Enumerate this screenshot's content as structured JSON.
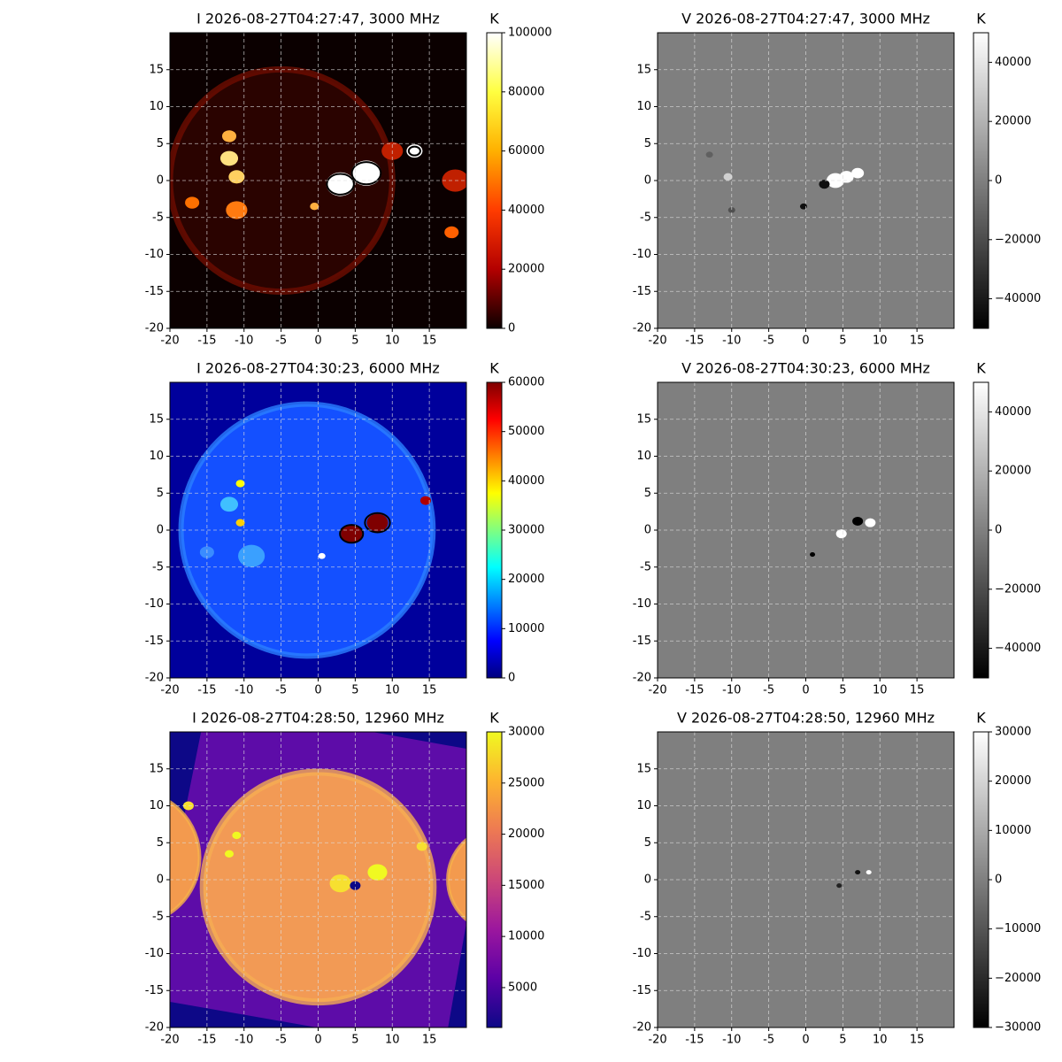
{
  "chart_data": [
    {
      "type": "heatmap",
      "title": "I 2026-08-27T04:27:47, 3000 MHz",
      "colorbar_label": "K",
      "colormap": "hot",
      "xlim": [
        -20,
        20
      ],
      "ylim": [
        -20,
        20
      ],
      "xticks": [
        -20,
        -15,
        -10,
        -5,
        0,
        5,
        10,
        15
      ],
      "yticks": [
        -20,
        -15,
        -10,
        -5,
        0,
        5,
        10,
        15
      ],
      "clim": [
        0,
        100000
      ],
      "cticks": [
        0,
        20000,
        40000,
        60000,
        80000,
        100000
      ],
      "grid": true
    },
    {
      "type": "heatmap",
      "title": "V 2026-08-27T04:27:47, 3000 MHz",
      "colorbar_label": "K",
      "colormap": "gray",
      "xlim": [
        -20,
        20
      ],
      "ylim": [
        -20,
        20
      ],
      "xticks": [
        -20,
        -15,
        -10,
        -5,
        0,
        5,
        10,
        15
      ],
      "yticks": [
        -20,
        -15,
        -10,
        -5,
        0,
        5,
        10,
        15
      ],
      "clim": [
        -50000,
        50000
      ],
      "cticks": [
        {
          "value": -40000,
          "label": "−40000"
        },
        {
          "value": -20000,
          "label": "−20000"
        },
        0,
        20000,
        40000
      ],
      "grid": true
    },
    {
      "type": "heatmap",
      "title": "I 2026-08-27T04:30:23, 6000 MHz",
      "colorbar_label": "K",
      "colormap": "jet",
      "xlim": [
        -20,
        20
      ],
      "ylim": [
        -20,
        20
      ],
      "xticks": [
        -20,
        -15,
        -10,
        -5,
        0,
        5,
        10,
        15
      ],
      "yticks": [
        -20,
        -15,
        -10,
        -5,
        0,
        5,
        10,
        15
      ],
      "clim": [
        0,
        60000
      ],
      "cticks": [
        0,
        10000,
        20000,
        30000,
        40000,
        50000,
        60000
      ],
      "grid": true
    },
    {
      "type": "heatmap",
      "title": "V 2026-08-27T04:30:23, 6000 MHz",
      "colorbar_label": "K",
      "colormap": "gray",
      "xlim": [
        -20,
        20
      ],
      "ylim": [
        -20,
        20
      ],
      "xticks": [
        -20,
        -15,
        -10,
        -5,
        0,
        5,
        10,
        15
      ],
      "yticks": [
        -20,
        -15,
        -10,
        -5,
        0,
        5,
        10,
        15
      ],
      "clim": [
        -50000,
        50000
      ],
      "cticks": [
        {
          "value": -40000,
          "label": "−40000"
        },
        {
          "value": -20000,
          "label": "−20000"
        },
        0,
        20000,
        40000
      ],
      "grid": true
    },
    {
      "type": "heatmap",
      "title": "I 2026-08-27T04:28:50, 12960 MHz",
      "colorbar_label": "K",
      "colormap": "plasma",
      "xlim": [
        -20,
        20
      ],
      "ylim": [
        -20,
        20
      ],
      "xticks": [
        -20,
        -15,
        -10,
        -5,
        0,
        5,
        10,
        15
      ],
      "yticks": [
        -20,
        -15,
        -10,
        -5,
        0,
        5,
        10,
        15
      ],
      "clim": [
        1100,
        30000
      ],
      "cticks": [
        5000,
        10000,
        15000,
        20000,
        25000,
        30000
      ],
      "grid": true
    },
    {
      "type": "heatmap",
      "title": "V 2026-08-27T04:28:50, 12960 MHz",
      "colorbar_label": "K",
      "colormap": "gray",
      "xlim": [
        -20,
        20
      ],
      "ylim": [
        -20,
        20
      ],
      "xticks": [
        -20,
        -15,
        -10,
        -5,
        0,
        5,
        10,
        15
      ],
      "yticks": [
        -20,
        -15,
        -10,
        -5,
        0,
        5,
        10,
        15
      ],
      "clim": [
        -30000,
        30000
      ],
      "cticks": [
        {
          "value": -30000,
          "label": "−30000"
        },
        {
          "value": -20000,
          "label": "−20000"
        },
        {
          "value": -10000,
          "label": "−10000"
        },
        0,
        10000,
        20000,
        30000
      ],
      "grid": true
    }
  ]
}
